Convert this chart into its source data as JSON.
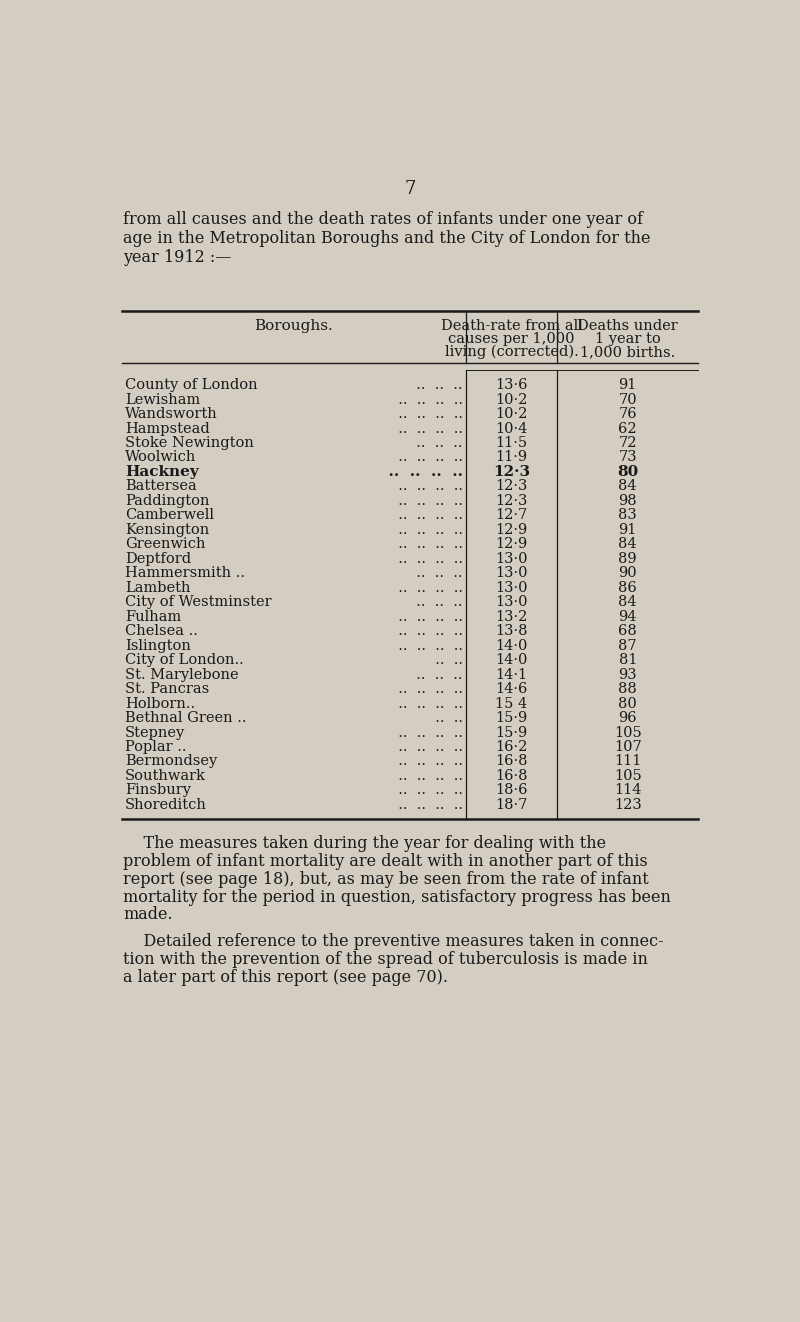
{
  "page_number": "7",
  "intro_text": "from all causes and the death rates of infants under one year of\nage in the Metropolitan Boroughs and the City of London for the\nyear 1912 :—",
  "col1_header": "Boroughs.",
  "col2_header": "Death-rate from all\ncauses per 1,000\nliving (corrected).",
  "col3_header": "Deaths under\n1 year to\n1,000 births.",
  "boroughs": [
    "County of London",
    "Lewisham",
    "Wandsworth",
    "Hampstead",
    "Stoke Newington",
    "Woolwich",
    "Hackney",
    "Battersea",
    "Paddington",
    "Camberwell",
    "Kensington",
    "Greenwich",
    "Deptford",
    "Hammersmith ..",
    "Lambeth",
    "City of Westminster",
    "Fulham",
    "Chelsea ..",
    "Islington",
    "City of London..",
    "St. Marylebone",
    "St. Pancras",
    "Holborn..",
    "Bethnal Green ..",
    "Stepney",
    "Poplar ..",
    "Bermondsey",
    "Southwark",
    "Finsbury",
    "Shoreditch"
  ],
  "borough_dots": [
    "  ..  ..  ..",
    "  ..  ..  ..  ..",
    "  ..  ..  ..  ..",
    "  ..  ..  ..  ..",
    "  ..  ..  ..",
    "  ..  ..  ..  ..",
    "  ..  ..  ..  ..",
    "  ..  ..  ..  ..",
    "  ..  ..  ..  ..",
    "  ..  ..  ..  ..",
    "  ..  ..  ..  ..",
    "  ..  ..  ..  ..",
    "  ..  ..  ..  ..",
    "  ..  ..  ..",
    "  ..  ..  ..  ..",
    "  ..  ..  ..",
    "  ..  ..  ..  ..",
    "  ..  ..  ..  ..",
    "  ..  ..  ..  ..",
    "  ..  ..",
    "  ..  ..  ..",
    "  ..  ..  ..  ..",
    "  ..  ..  ..  ..",
    "  ..  ..",
    "  ..  ..  ..  ..",
    "  ..  ..  ..  ..",
    "  ..  ..  ..  ..",
    "  ..  ..  ..  ..",
    "  ..  ..  ..  ..",
    "  ..  ..  ..  .."
  ],
  "death_rates": [
    "13·6",
    "10·2",
    "10·2",
    "10·4",
    "11·5",
    "11·9",
    "12·3",
    "12·3",
    "12·3",
    "12·7",
    "12·9",
    "12·9",
    "13·0",
    "13·0",
    "13·0",
    "13·0",
    "13·2",
    "13·8",
    "14·0",
    "14·0",
    "14·1",
    "14·6",
    "15 4",
    "15·9",
    "15·9",
    "16·2",
    "16·8",
    "16·8",
    "18·6",
    "18·7"
  ],
  "infant_deaths": [
    "91",
    "70",
    "76",
    "62",
    "72",
    "73",
    "80",
    "84",
    "98",
    "83",
    "91",
    "84",
    "89",
    "90",
    "86",
    "84",
    "94",
    "68",
    "87",
    "81",
    "93",
    "88",
    "80",
    "96",
    "105",
    "107",
    "111",
    "105",
    "114",
    "123"
  ],
  "bold_row": 6,
  "footer_paragraphs": [
    "    The measures taken during the year for dealing with the\nproblem of infant mortality are dealt with in another part of this\nreport (see page 18), but, as may be seen from the rate of infant\nmortality for the period in question, satisfactory progress has been\nmade.",
    "    Detailed reference to the preventive measures taken in connec-\ntion with the prevention of the spread of tuberculosis is made in\na later part of this report (see page 70)."
  ],
  "bg_color": "#d4cdc2",
  "text_color": "#1a1a1a"
}
